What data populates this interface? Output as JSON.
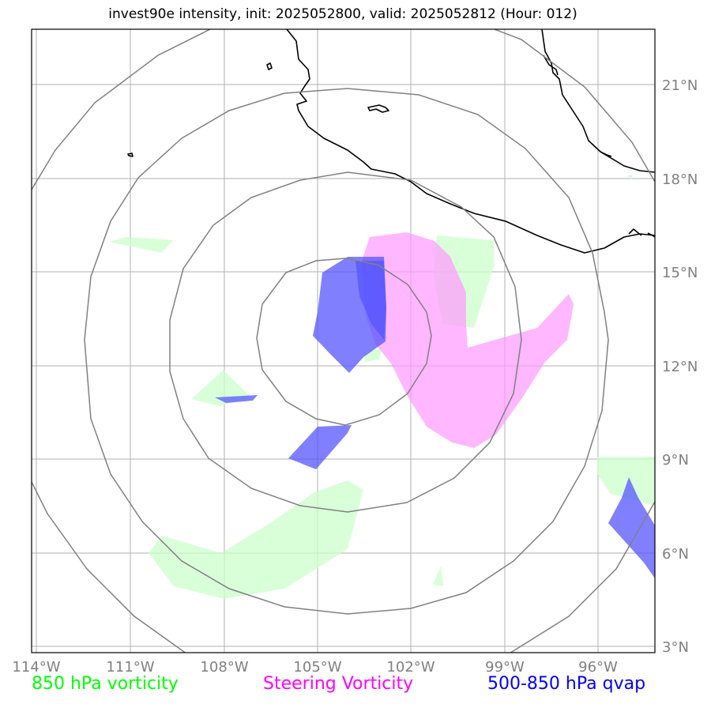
{
  "title": "invest90e intensity, init: 2025052800, valid: 2025052812 (Hour: 012)",
  "map": {
    "lon_range": [
      -114.1,
      -94.1
    ],
    "lat_range": [
      2.8,
      22.8
    ],
    "lon_ticks": [
      "114°W",
      "111°W",
      "108°W",
      "105°W",
      "102°W",
      "99°W",
      "96°W"
    ],
    "lat_ticks": [
      "21°N",
      "18°N",
      "15°N",
      "12°N",
      "9°N",
      "6°N",
      "3°N"
    ],
    "gridlines": true,
    "range_rings": {
      "center": [
        -104.5,
        13.0
      ],
      "radii_deg_approx": [
        2.75,
        5.5,
        8.25,
        11.0
      ],
      "color": "#808080"
    }
  },
  "legend": {
    "vorticity850": {
      "label": "850 hPa vorticity",
      "color": "#00ff00"
    },
    "steering": {
      "label": "Steering Vorticity",
      "color": "#ff00ff"
    },
    "qvap": {
      "label": "500-850 hPa qvap",
      "color": "#0000ff"
    }
  },
  "colors": {
    "vorticity850_fill": "#ccffcc",
    "steering_fill": "#ff99ff",
    "qvap_fill": "#6666ff",
    "coastline": "#000000",
    "grid": "#b0b0b0"
  }
}
